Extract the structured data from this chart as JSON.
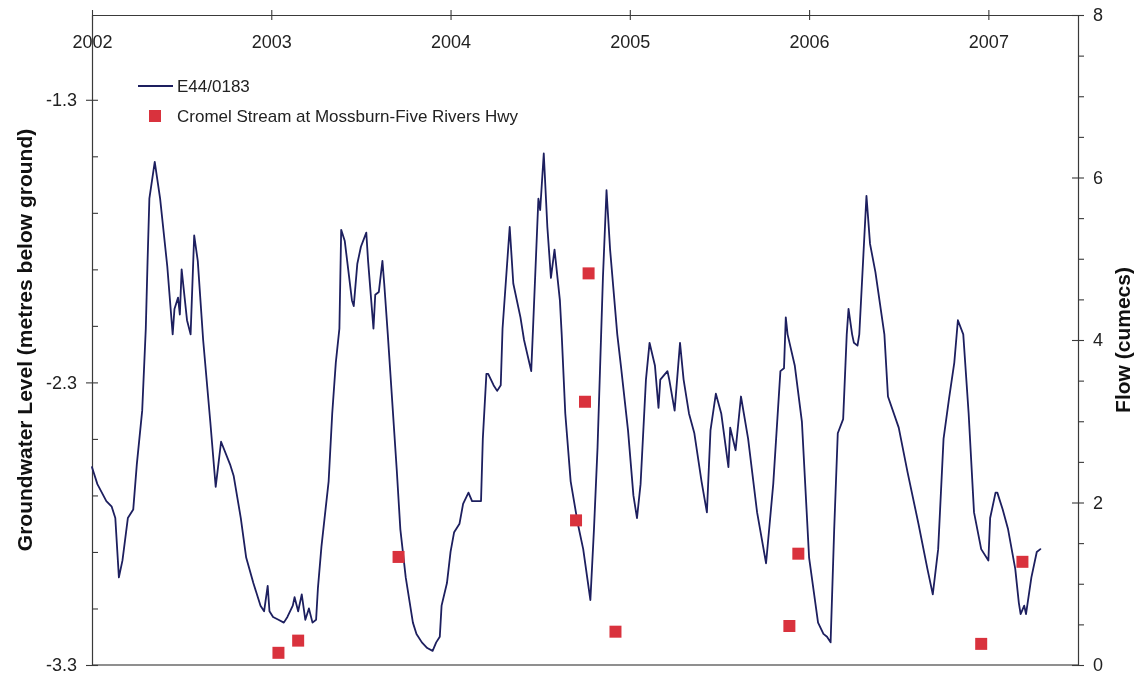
{
  "chart_data": {
    "type": "line",
    "ylabel": "Groundwater Level (metres below ground)",
    "y2label": "Flow (cumecs)",
    "xlim": [
      2002,
      2007.5
    ],
    "xticks": [
      2002,
      2003,
      2004,
      2005,
      2006,
      2007
    ],
    "ylim": [
      -3.3,
      -1.0
    ],
    "yticks": [
      -3.3,
      {
        "value": -3.1,
        "label": null
      },
      {
        "value": -2.9,
        "label": null
      },
      {
        "value": -2.7,
        "label": null
      },
      {
        "value": -2.5,
        "label": null
      },
      -2.3,
      {
        "value": -2.1,
        "label": null
      },
      {
        "value": -1.9,
        "label": null
      },
      {
        "value": -1.7,
        "label": null
      },
      {
        "value": -1.5,
        "label": null
      },
      -1.3
    ],
    "y2lim": [
      0,
      8
    ],
    "y2ticks": [
      0,
      {
        "value": 0.5,
        "label": null
      },
      {
        "value": 1,
        "label": null
      },
      {
        "value": 1.5,
        "label": null
      },
      2,
      {
        "value": 2.5,
        "label": null
      },
      {
        "value": 3,
        "label": null
      },
      {
        "value": 3.5,
        "label": null
      },
      4,
      {
        "value": 4.5,
        "label": null
      },
      {
        "value": 5,
        "label": null
      },
      {
        "value": 5.5,
        "label": null
      },
      6,
      {
        "value": 6.5,
        "label": null
      },
      {
        "value": 7,
        "label": null
      },
      {
        "value": 7.5,
        "label": null
      },
      8
    ],
    "legend": "top left",
    "series": [
      {
        "name": "E44/0183",
        "color": "#1d1f5f",
        "x": [
          2002.0,
          2002.03,
          2002.08,
          2002.11,
          2002.13,
          2002.15,
          2002.17,
          2002.2,
          2002.23,
          2002.25,
          2002.28,
          2002.3,
          2002.31,
          2002.32,
          2002.35,
          2002.38,
          2002.42,
          2002.45,
          2002.46,
          2002.48,
          2002.49,
          2002.5,
          2002.53,
          2002.55,
          2002.57,
          2002.59,
          2002.62,
          2002.66,
          2002.69,
          2002.72,
          2002.77,
          2002.79,
          2002.83,
          2002.86,
          2002.9,
          2002.94,
          2002.96,
          2002.98,
          2002.99,
          2003.01,
          2003.04,
          2003.07,
          2003.09,
          2003.12,
          2003.13,
          2003.15,
          2003.17,
          2003.19,
          2003.21,
          2003.23,
          2003.25,
          2003.26,
          2003.28,
          2003.32,
          2003.34,
          2003.36,
          2003.38,
          2003.39,
          2003.41,
          2003.45,
          2003.46,
          2003.48,
          2003.5,
          2003.53,
          2003.54,
          2003.57,
          2003.58,
          2003.6,
          2003.62,
          2003.63,
          2003.65,
          2003.7,
          2003.72,
          2003.75,
          2003.79,
          2003.81,
          2003.84,
          2003.87,
          2003.9,
          2003.92,
          2003.94,
          2003.95,
          2003.98,
          2004.0,
          2004.02,
          2004.05,
          2004.07,
          2004.1,
          2004.12,
          2004.17,
          2004.18,
          2004.2,
          2004.21,
          2004.24,
          2004.26,
          2004.28,
          2004.29,
          2004.33,
          2004.35,
          2004.39,
          2004.41,
          2004.45,
          2004.46,
          2004.49,
          2004.5,
          2004.52,
          2004.54,
          2004.56,
          2004.58,
          2004.61,
          2004.62,
          2004.64,
          2004.67,
          2004.71,
          2004.74,
          2004.78,
          2004.8,
          2004.82,
          2004.84,
          2004.85,
          2004.87,
          2004.89,
          2004.93,
          2004.95,
          2004.99,
          2005.02,
          2005.04,
          2005.06,
          2005.09,
          2005.11,
          2005.14,
          2005.16,
          2005.17,
          2005.21,
          2005.22,
          2005.25,
          2005.28,
          2005.3,
          2005.33,
          2005.36,
          2005.4,
          2005.43,
          2005.45,
          2005.48,
          2005.51,
          2005.55,
          2005.56,
          2005.59,
          2005.62,
          2005.66,
          2005.71,
          2005.76,
          2005.8,
          2005.84,
          2005.86,
          2005.87,
          2005.88,
          2005.92,
          2005.96,
          2006.0,
          2006.05,
          2006.08,
          2006.1,
          2006.12,
          2006.14,
          2006.16,
          2006.19,
          2006.21,
          2006.22,
          2006.24,
          2006.25,
          2006.27,
          2006.28,
          2006.32,
          2006.34,
          2006.37,
          2006.42,
          2006.44,
          2006.5,
          2006.55,
          2006.61,
          2006.66,
          2006.69,
          2006.72,
          2006.75,
          2006.78,
          2006.81,
          2006.83,
          2006.86,
          2006.89,
          2006.92,
          2006.96,
          2007.0,
          2007.01,
          2007.04,
          2007.05,
          2007.08,
          2007.11,
          2007.15,
          2007.17,
          2007.18,
          2007.2,
          2007.21,
          2007.24,
          2007.27,
          2007.29
        ],
        "values": [
          -2.6,
          -2.66,
          -2.72,
          -2.74,
          -2.78,
          -2.99,
          -2.93,
          -2.78,
          -2.75,
          -2.59,
          -2.4,
          -2.11,
          -1.87,
          -1.65,
          -1.52,
          -1.65,
          -1.89,
          -2.13,
          -2.04,
          -2.0,
          -2.06,
          -1.9,
          -2.08,
          -2.13,
          -1.78,
          -1.87,
          -2.15,
          -2.44,
          -2.67,
          -2.51,
          -2.59,
          -2.63,
          -2.78,
          -2.92,
          -3.01,
          -3.09,
          -3.11,
          -3.02,
          -3.11,
          -3.13,
          -3.14,
          -3.15,
          -3.13,
          -3.09,
          -3.06,
          -3.11,
          -3.05,
          -3.14,
          -3.1,
          -3.15,
          -3.14,
          -3.03,
          -2.88,
          -2.65,
          -2.41,
          -2.23,
          -2.11,
          -1.76,
          -1.8,
          -2.01,
          -2.03,
          -1.88,
          -1.82,
          -1.77,
          -1.87,
          -2.11,
          -1.99,
          -1.98,
          -1.87,
          -1.95,
          -2.13,
          -2.61,
          -2.82,
          -2.99,
          -3.15,
          -3.19,
          -3.22,
          -3.24,
          -3.25,
          -3.22,
          -3.2,
          -3.09,
          -3.01,
          -2.9,
          -2.83,
          -2.8,
          -2.73,
          -2.69,
          -2.72,
          -2.72,
          -2.5,
          -2.27,
          -2.27,
          -2.31,
          -2.33,
          -2.31,
          -2.11,
          -1.75,
          -1.95,
          -2.07,
          -2.15,
          -2.26,
          -2.11,
          -1.65,
          -1.69,
          -1.49,
          -1.75,
          -1.93,
          -1.83,
          -2.01,
          -2.13,
          -2.41,
          -2.65,
          -2.8,
          -2.89,
          -3.07,
          -2.82,
          -2.53,
          -2.13,
          -1.93,
          -1.62,
          -1.83,
          -2.13,
          -2.24,
          -2.47,
          -2.7,
          -2.78,
          -2.66,
          -2.29,
          -2.16,
          -2.24,
          -2.39,
          -2.29,
          -2.26,
          -2.29,
          -2.4,
          -2.16,
          -2.29,
          -2.41,
          -2.48,
          -2.65,
          -2.76,
          -2.47,
          -2.34,
          -2.41,
          -2.6,
          -2.46,
          -2.54,
          -2.35,
          -2.5,
          -2.76,
          -2.94,
          -2.66,
          -2.26,
          -2.25,
          -2.07,
          -2.13,
          -2.24,
          -2.44,
          -2.92,
          -3.15,
          -3.19,
          -3.2,
          -3.22,
          -2.82,
          -2.48,
          -2.43,
          -2.13,
          -2.04,
          -2.13,
          -2.16,
          -2.17,
          -2.13,
          -1.64,
          -1.81,
          -1.91,
          -2.13,
          -2.35,
          -2.46,
          -2.62,
          -2.8,
          -2.96,
          -3.05,
          -2.89,
          -2.5,
          -2.36,
          -2.23,
          -2.08,
          -2.13,
          -2.41,
          -2.76,
          -2.89,
          -2.93,
          -2.78,
          -2.69,
          -2.69,
          -2.75,
          -2.82,
          -2.96,
          -3.08,
          -3.12,
          -3.09,
          -3.12,
          -2.99,
          -2.9,
          -2.89
        ]
      },
      {
        "name": "Cromel Stream at Mossburn-Five Rivers Hwy",
        "type": "scatter",
        "axis": "y2",
        "marker": "square",
        "color": "#d9323d",
        "x": [
          2003.04,
          2003.15,
          2003.71,
          2004.7,
          2004.75,
          2004.77,
          2004.92,
          2005.89,
          2005.94,
          2006.96,
          2007.19
        ],
        "values": [
          0.15,
          0.3,
          1.33,
          1.78,
          3.24,
          4.82,
          0.41,
          0.48,
          1.37,
          0.26,
          1.27
        ]
      }
    ]
  }
}
